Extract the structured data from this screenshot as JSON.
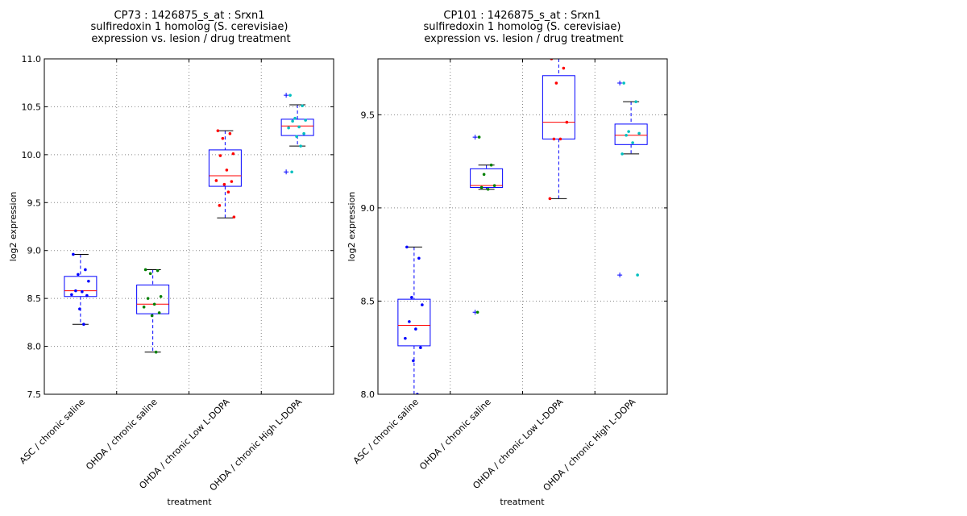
{
  "colors": {
    "box": "#0000ff",
    "median": "#ff0000",
    "whisker": "#0000ff",
    "grid": "#888888",
    "cap": "#000000"
  },
  "chart_data": [
    {
      "type": "boxplot",
      "title_lines": [
        "CP73 : 1426875_s_at : Srxn1",
        "sulfiredoxin 1 homolog (S. cerevisiae)",
        "expression vs. lesion / drug treatment"
      ],
      "xlabel": "treatment",
      "ylabel": "log2 expression",
      "ylim": [
        7.5,
        11.0
      ],
      "yticks": [
        "7.5",
        "8.0",
        "8.5",
        "9.0",
        "9.5",
        "10.0",
        "10.5",
        "11.0"
      ],
      "grid": true,
      "categories": [
        "ASC / chronic saline",
        "OHDA / chronic saline",
        "OHDA / chronic Low L-DOPA",
        "OHDA / chronic High L-DOPA"
      ],
      "groups": [
        {
          "color": "#0000ff",
          "whisker_low": 8.23,
          "q1": 8.52,
          "median": 8.58,
          "q3": 8.73,
          "whisker_high": 8.96,
          "fliers": [],
          "points": [
            8.96,
            8.8,
            8.75,
            8.68,
            8.58,
            8.57,
            8.54,
            8.53,
            8.39,
            8.23
          ]
        },
        {
          "color": "#008000",
          "whisker_low": 7.94,
          "q1": 8.34,
          "median": 8.44,
          "q3": 8.64,
          "whisker_high": 8.8,
          "fliers": [],
          "points": [
            8.8,
            8.79,
            8.76,
            8.52,
            8.5,
            8.44,
            8.41,
            8.35,
            8.32,
            7.94
          ]
        },
        {
          "color": "#ff0000",
          "whisker_low": 9.34,
          "q1": 9.67,
          "median": 9.78,
          "q3": 10.05,
          "whisker_high": 10.25,
          "fliers": [],
          "points": [
            10.25,
            10.22,
            10.17,
            10.01,
            9.99,
            9.84,
            9.73,
            9.72,
            9.69,
            9.61,
            9.47,
            9.35
          ]
        },
        {
          "color": "#00bfbf",
          "whisker_low": 10.09,
          "q1": 10.2,
          "median": 10.3,
          "q3": 10.37,
          "whisker_high": 10.52,
          "fliers": [
            10.62,
            9.82
          ],
          "points": [
            10.62,
            10.51,
            10.38,
            10.36,
            10.35,
            10.29,
            10.28,
            10.22,
            10.19,
            10.09,
            9.82
          ]
        }
      ]
    },
    {
      "type": "boxplot",
      "title_lines": [
        "CP101 : 1426875_s_at : Srxn1",
        "sulfiredoxin 1 homolog (S. cerevisiae)",
        "expression vs. lesion / drug treatment"
      ],
      "xlabel": "treatment",
      "ylabel": "log2 expression",
      "ylim": [
        8.0,
        9.8
      ],
      "yticks": [
        "8.0",
        "8.5",
        "9.0",
        "9.5"
      ],
      "grid": true,
      "categories": [
        "ASC / chronic saline",
        "OHDA / chronic saline",
        "OHDA / chronic Low L-DOPA",
        "OHDA / chronic High L-DOPA"
      ],
      "groups": [
        {
          "color": "#0000ff",
          "whisker_low": 8.0,
          "q1": 8.26,
          "median": 8.37,
          "q3": 8.51,
          "whisker_high": 8.79,
          "fliers": [],
          "points": [
            8.79,
            8.73,
            8.52,
            8.48,
            8.39,
            8.35,
            8.3,
            8.25,
            8.18,
            8.0
          ]
        },
        {
          "color": "#008000",
          "whisker_low": 9.1,
          "q1": 9.11,
          "median": 9.12,
          "q3": 9.21,
          "whisker_high": 9.23,
          "fliers": [
            9.38,
            8.44
          ],
          "points": [
            9.38,
            9.23,
            9.18,
            9.12,
            9.11,
            9.1,
            8.44
          ]
        },
        {
          "color": "#ff0000",
          "whisker_low": 9.05,
          "q1": 9.37,
          "median": 9.46,
          "q3": 9.71,
          "whisker_high": 9.8,
          "fliers": [],
          "points": [
            9.8,
            9.75,
            9.67,
            9.46,
            9.37,
            9.37,
            9.05
          ]
        },
        {
          "color": "#00bfbf",
          "whisker_low": 9.29,
          "q1": 9.34,
          "median": 9.39,
          "q3": 9.45,
          "whisker_high": 9.57,
          "fliers": [
            9.67,
            8.64
          ],
          "points": [
            9.67,
            9.57,
            9.41,
            9.4,
            9.39,
            9.35,
            9.29,
            8.64
          ]
        }
      ]
    }
  ]
}
